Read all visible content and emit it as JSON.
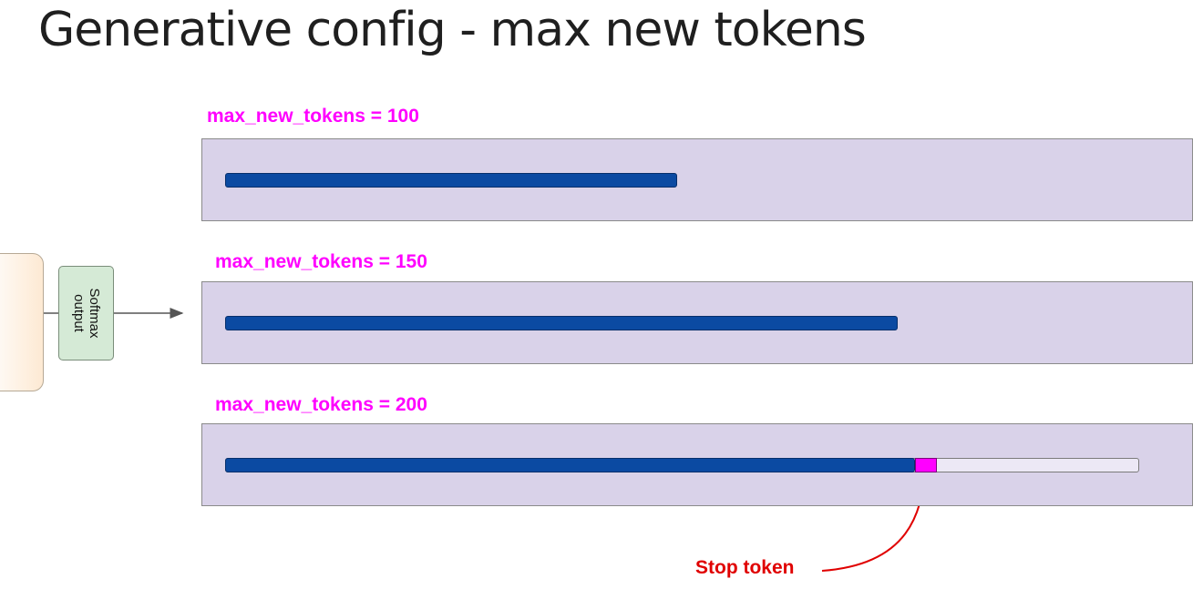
{
  "title": "Generative config - max new tokens",
  "softmax": {
    "line1": "Softmax",
    "line2": "output"
  },
  "panels": [
    {
      "label": "max_new_tokens = 100",
      "max_new_tokens": 100,
      "generated_fraction": 0.495,
      "stop_token": false
    },
    {
      "label": "max_new_tokens = 150",
      "max_new_tokens": 150,
      "generated_fraction": 0.736,
      "stop_token": false
    },
    {
      "label": "max_new_tokens = 200",
      "max_new_tokens": 200,
      "generated_fraction": 0.755,
      "stop_token": true
    }
  ],
  "stop_token_label": "Stop token",
  "colors": {
    "label": "#ff00ff",
    "panel_bg": "#d9d2e9",
    "bar": "#0b4aa2",
    "stop_marker": "#ff00ff",
    "stop_label": "#e00000",
    "softmax_bg": "#d5ead6"
  }
}
